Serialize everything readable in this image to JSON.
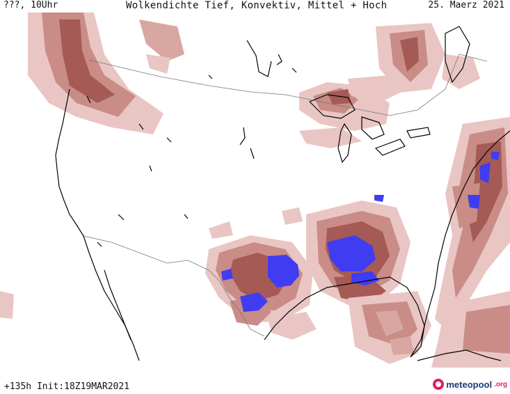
{
  "header": {
    "time_label": "???, 10Uhr",
    "title": "Wolkendichte  Tief, Konvektiv, Mittel + Hoch",
    "date": "25. Maerz 2021"
  },
  "footer": {
    "run_info": "+135h Init:18Z19MAR2021",
    "logo_text": "meteopool",
    "logo_tld": ".org"
  },
  "legend_colors": {
    "cloud_light": "#e9c6c3",
    "cloud_medium": "#c98c87",
    "cloud_dense": "#a55a55",
    "convective_max": "#3f3cf2",
    "coastline": "#000000",
    "borders": "#777777"
  }
}
